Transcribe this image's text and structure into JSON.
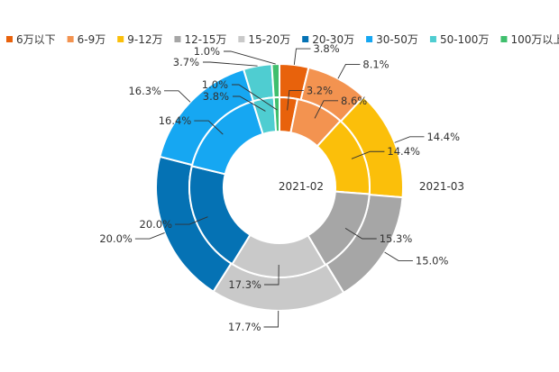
{
  "chart_data": {
    "type": "pie",
    "subtype": "nested-donut",
    "categories": [
      "6万以下",
      "6-9万",
      "9-12万",
      "12-15万",
      "15-20万",
      "20-30万",
      "30-50万",
      "50-100万",
      "100万以上"
    ],
    "colors": [
      "#e8620c",
      "#f39350",
      "#fbbf0a",
      "#a6a6a6",
      "#c9c9c9",
      "#0572b4",
      "#16a7f2",
      "#4fcdd1",
      "#3fbf6d"
    ],
    "series": [
      {
        "name": "2021-02",
        "values": [
          3.2,
          8.6,
          14.4,
          15.3,
          17.3,
          20.0,
          16.4,
          3.8,
          1.0
        ],
        "labels": [
          "3.2%",
          "8.6%",
          "14.4%",
          "15.3%",
          "17.3%",
          "20.0%",
          "16.4%",
          "3.8%",
          "1.0%"
        ]
      },
      {
        "name": "2021-03",
        "values": [
          3.8,
          8.1,
          14.4,
          15.0,
          17.7,
          20.0,
          16.3,
          3.7,
          1.0
        ],
        "labels": [
          "3.8%",
          "8.1%",
          "14.4%",
          "15.0%",
          "17.7%",
          "20.0%",
          "16.3%",
          "3.7%",
          "1.0%"
        ]
      }
    ],
    "legend_position": "top"
  }
}
